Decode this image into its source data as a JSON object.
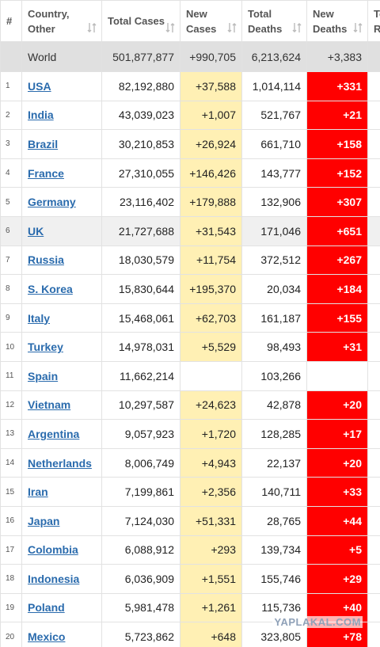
{
  "table": {
    "headers": [
      "#",
      "Country, Other",
      "Total Cases",
      "New Cases",
      "Total Deaths",
      "New Deaths",
      "To R"
    ],
    "world": [
      "World",
      "501,877,877",
      "+990,705",
      "6,213,624",
      "+3,383"
    ],
    "rows": [
      [
        "1",
        "USA",
        "82,192,880",
        "+37,588",
        "1,014,114",
        "+331"
      ],
      [
        "2",
        "India",
        "43,039,023",
        "+1,007",
        "521,767",
        "+21"
      ],
      [
        "3",
        "Brazil",
        "30,210,853",
        "+26,924",
        "661,710",
        "+158"
      ],
      [
        "4",
        "France",
        "27,310,055",
        "+146,426",
        "143,777",
        "+152"
      ],
      [
        "5",
        "Germany",
        "23,116,402",
        "+179,888",
        "132,906",
        "+307"
      ],
      [
        "6",
        "UK",
        "21,727,688",
        "+31,543",
        "171,046",
        "+651"
      ],
      [
        "7",
        "Russia",
        "18,030,579",
        "+11,754",
        "372,512",
        "+267"
      ],
      [
        "8",
        "S. Korea",
        "15,830,644",
        "+195,370",
        "20,034",
        "+184"
      ],
      [
        "9",
        "Italy",
        "15,468,061",
        "+62,703",
        "161,187",
        "+155"
      ],
      [
        "10",
        "Turkey",
        "14,978,031",
        "+5,529",
        "98,493",
        "+31"
      ],
      [
        "11",
        "Spain",
        "11,662,214",
        null,
        "103,266",
        null
      ],
      [
        "12",
        "Vietnam",
        "10,297,587",
        "+24,623",
        "42,878",
        "+20"
      ],
      [
        "13",
        "Argentina",
        "9,057,923",
        "+1,720",
        "128,285",
        "+17"
      ],
      [
        "14",
        "Netherlands",
        "8,006,749",
        "+4,943",
        "22,137",
        "+20"
      ],
      [
        "15",
        "Iran",
        "7,199,861",
        "+2,356",
        "140,711",
        "+33"
      ],
      [
        "16",
        "Japan",
        "7,124,030",
        "+51,331",
        "28,765",
        "+44"
      ],
      [
        "17",
        "Colombia",
        "6,088,912",
        "+293",
        "139,734",
        "+5"
      ],
      [
        "18",
        "Indonesia",
        "6,036,909",
        "+1,551",
        "155,746",
        "+29"
      ],
      [
        "19",
        "Poland",
        "5,981,478",
        "+1,261",
        "115,736",
        "+40"
      ],
      [
        "20",
        "Mexico",
        "5,723,862",
        "+648",
        "323,805",
        "+78"
      ]
    ]
  },
  "watermark": "YAPLAKAL.COM"
}
